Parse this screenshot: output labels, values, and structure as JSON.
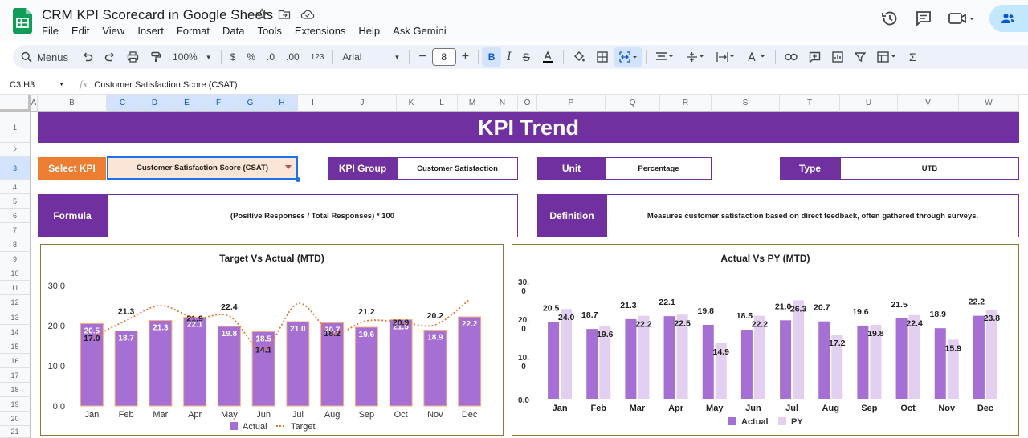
{
  "app": {
    "doc_title": "CRM KPI Scorecard in Google Sheets",
    "menu": [
      "File",
      "Edit",
      "View",
      "Insert",
      "Format",
      "Data",
      "Tools",
      "Extensions",
      "Help",
      "Ask Gemini"
    ]
  },
  "toolbar": {
    "search_label": "Menus",
    "zoom": "100%",
    "currency": "$",
    "percent": "%",
    "dec_decrease": ".0",
    "dec_increase": ".00",
    "number_format": "123",
    "font": "Arial",
    "font_size": "8",
    "bold": "B"
  },
  "formula_bar": {
    "name_box": "C3:H3",
    "fx": "fx",
    "content": "Customer Satisfaction Score (CSAT)"
  },
  "grid": {
    "columns": [
      "A",
      "B",
      "C",
      "D",
      "E",
      "F",
      "G",
      "H",
      "I",
      "J",
      "K",
      "L",
      "M",
      "N",
      "O",
      "P",
      "Q",
      "R",
      "S",
      "T",
      "U",
      "V",
      "W"
    ],
    "rows": [
      "1",
      "2",
      "3",
      "4",
      "5",
      "6",
      "7",
      "8",
      "9",
      "10",
      "11",
      "12",
      "13",
      "14",
      "15",
      "16",
      "17",
      "18",
      "19",
      "20",
      "21"
    ]
  },
  "sheet": {
    "banner": "KPI Trend",
    "select_kpi_label": "Select KPI",
    "select_kpi_value": "Customer Satisfaction Score (CSAT)",
    "kpi_group_label": "KPI Group",
    "kpi_group_value": "Customer Satisfaction",
    "unit_label": "Unit",
    "unit_value": "Percentage",
    "type_label": "Type",
    "type_value": "UTB",
    "formula_label": "Formula",
    "formula_value": "(Positive Responses / Total Responses) * 100",
    "definition_label": "Definition",
    "definition_value": "Measures customer satisfaction based on direct feedback, often gathered through surveys."
  },
  "colors": {
    "purple": "#7030a0",
    "orange": "#ed7d31",
    "actual_bar": "#a66fd4",
    "py_bar": "#e3d0f0",
    "target_line": "#e07b39"
  },
  "chart_data": [
    {
      "type": "bar",
      "title": "Target Vs Actual (MTD)",
      "categories": [
        "Jan",
        "Feb",
        "Mar",
        "Apr",
        "May",
        "Jun",
        "Jul",
        "Aug",
        "Sep",
        "Oct",
        "Nov",
        "Dec"
      ],
      "y_ticks": [
        "0.0",
        "10.0",
        "20.0",
        "30.0"
      ],
      "ylim": [
        0,
        30
      ],
      "series": [
        {
          "name": "Actual",
          "kind": "bar",
          "values": [
            20.5,
            18.7,
            21.3,
            22.1,
            19.8,
            18.5,
            21.0,
            20.7,
            19.6,
            21.5,
            18.9,
            22.2
          ]
        },
        {
          "name": "Target",
          "kind": "line",
          "values": [
            17.0,
            21.3,
            25.0,
            21.9,
            22.4,
            14.1,
            25.5,
            18.2,
            21.2,
            20.9,
            20.2,
            26.5
          ]
        }
      ],
      "target_labels": [
        "17.0",
        "21.3",
        "",
        "21.9",
        "22.4",
        "14.1",
        "",
        "18.2",
        "21.2",
        "20.9",
        "20.2",
        ""
      ],
      "legend": "bottom"
    },
    {
      "type": "bar",
      "title": "Actual Vs PY (MTD)",
      "categories": [
        "Jan",
        "Feb",
        "Mar",
        "Apr",
        "May",
        "Jun",
        "Jul",
        "Aug",
        "Sep",
        "Oct",
        "Nov",
        "Dec"
      ],
      "y_ticks": [
        "0.0",
        "10.\n0",
        "20.\n0",
        "30.\n0"
      ],
      "ylim": [
        0,
        30
      ],
      "series": [
        {
          "name": "Actual",
          "values": [
            20.5,
            18.7,
            21.3,
            22.1,
            19.8,
            18.5,
            21.0,
            20.7,
            19.6,
            21.5,
            18.9,
            22.2
          ]
        },
        {
          "name": "PY",
          "values": [
            24.0,
            19.6,
            22.2,
            22.5,
            14.9,
            22.2,
            26.3,
            17.2,
            19.8,
            22.4,
            15.9,
            23.8
          ]
        }
      ],
      "legend": "bottom"
    }
  ]
}
